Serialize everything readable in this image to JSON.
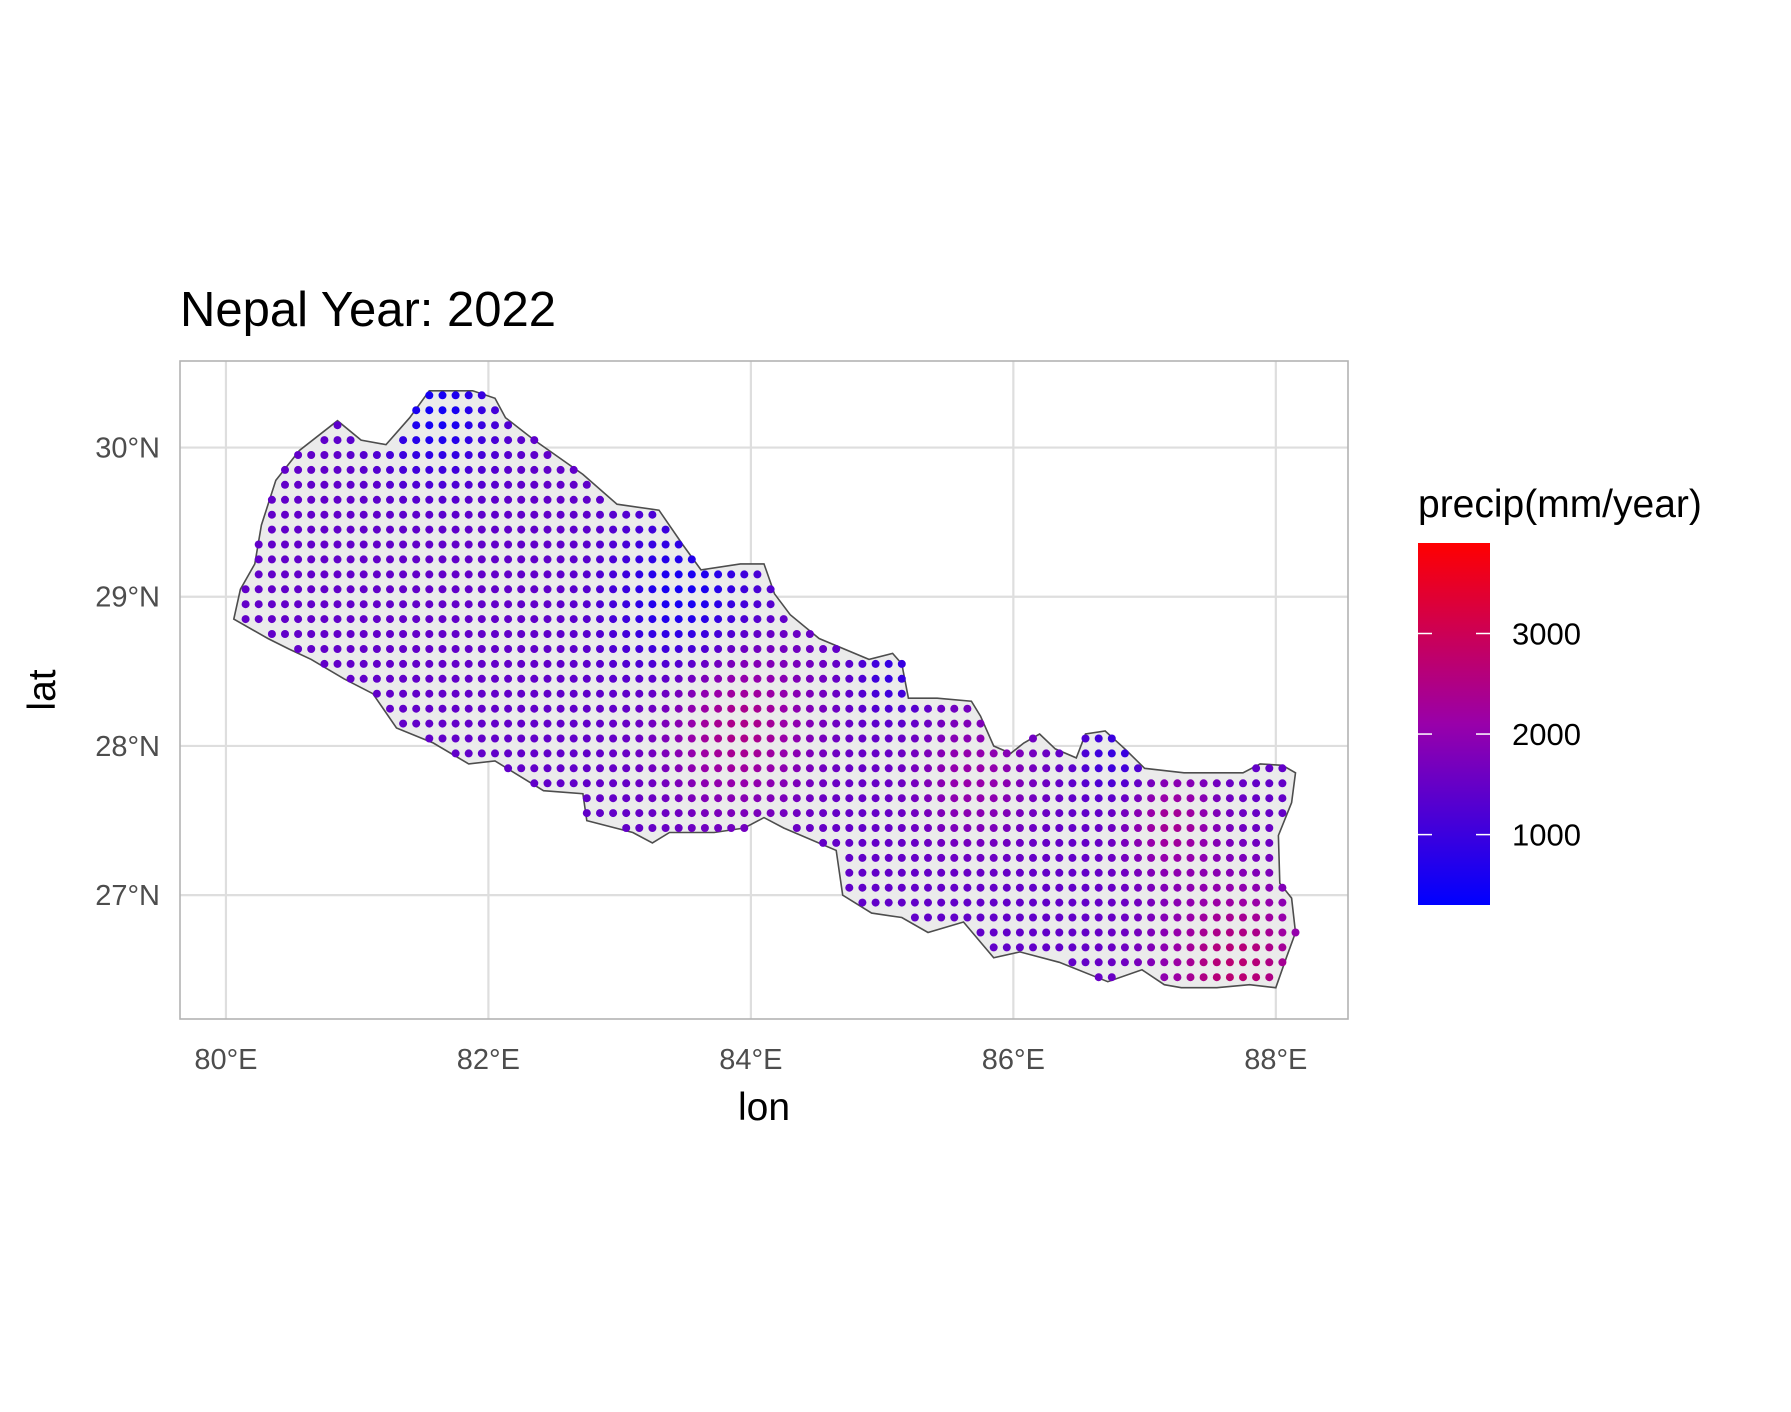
{
  "chart_data": {
    "type": "map",
    "title": "Nepal Year: 2022",
    "xlabel": "lon",
    "ylabel": "lat",
    "xlim": [
      79.65,
      88.55
    ],
    "ylim": [
      26.17,
      30.58
    ],
    "x_ticks": [
      {
        "value": 80,
        "label": "80°E"
      },
      {
        "value": 82,
        "label": "82°E"
      },
      {
        "value": 84,
        "label": "84°E"
      },
      {
        "value": 86,
        "label": "86°E"
      },
      {
        "value": 88,
        "label": "88°E"
      }
    ],
    "y_ticks": [
      {
        "value": 27,
        "label": "27°N"
      },
      {
        "value": 28,
        "label": "28°N"
      },
      {
        "value": 29,
        "label": "29°N"
      },
      {
        "value": 30,
        "label": "30°N"
      }
    ],
    "grid": true,
    "legend": {
      "title": "precip(mm/year)",
      "placement": "right",
      "min": 300,
      "max": 3900,
      "ticks": [
        {
          "value": 1000,
          "label": "1000"
        },
        {
          "value": 2000,
          "label": "2000"
        },
        {
          "value": 3000,
          "label": "3000"
        }
      ],
      "color_low": "#0000ff",
      "color_high": "#ff0000"
    },
    "region_fill": "#ebebeb",
    "region_stroke": "#4d4d4d",
    "boundary": [
      [
        80.06,
        28.85
      ],
      [
        80.11,
        29.05
      ],
      [
        80.22,
        29.22
      ],
      [
        80.27,
        29.48
      ],
      [
        80.38,
        29.78
      ],
      [
        80.56,
        29.98
      ],
      [
        80.85,
        30.18
      ],
      [
        81.03,
        30.05
      ],
      [
        81.22,
        30.02
      ],
      [
        81.4,
        30.2
      ],
      [
        81.55,
        30.38
      ],
      [
        81.88,
        30.38
      ],
      [
        82.05,
        30.33
      ],
      [
        82.13,
        30.2
      ],
      [
        82.35,
        30.05
      ],
      [
        82.72,
        29.82
      ],
      [
        82.98,
        29.62
      ],
      [
        83.3,
        29.58
      ],
      [
        83.48,
        29.35
      ],
      [
        83.62,
        29.18
      ],
      [
        83.92,
        29.22
      ],
      [
        84.1,
        29.22
      ],
      [
        84.18,
        29.02
      ],
      [
        84.3,
        28.88
      ],
      [
        84.52,
        28.72
      ],
      [
        84.9,
        28.58
      ],
      [
        85.08,
        28.62
      ],
      [
        85.15,
        28.55
      ],
      [
        85.2,
        28.32
      ],
      [
        85.42,
        28.32
      ],
      [
        85.68,
        28.3
      ],
      [
        85.75,
        28.2
      ],
      [
        85.85,
        28.0
      ],
      [
        85.98,
        27.95
      ],
      [
        86.08,
        28.02
      ],
      [
        86.2,
        28.08
      ],
      [
        86.32,
        27.98
      ],
      [
        86.48,
        27.92
      ],
      [
        86.55,
        28.08
      ],
      [
        86.7,
        28.1
      ],
      [
        86.85,
        27.98
      ],
      [
        87.0,
        27.85
      ],
      [
        87.3,
        27.82
      ],
      [
        87.62,
        27.82
      ],
      [
        87.75,
        27.82
      ],
      [
        87.88,
        27.88
      ],
      [
        88.05,
        27.87
      ],
      [
        88.15,
        27.82
      ],
      [
        88.12,
        27.62
      ],
      [
        88.02,
        27.4
      ],
      [
        88.03,
        27.08
      ],
      [
        88.12,
        26.98
      ],
      [
        88.15,
        26.75
      ],
      [
        88.08,
        26.58
      ],
      [
        88.0,
        26.38
      ],
      [
        87.8,
        26.4
      ],
      [
        87.55,
        26.38
      ],
      [
        87.28,
        26.38
      ],
      [
        87.15,
        26.4
      ],
      [
        86.98,
        26.5
      ],
      [
        86.72,
        26.42
      ],
      [
        86.35,
        26.55
      ],
      [
        86.05,
        26.62
      ],
      [
        85.85,
        26.58
      ],
      [
        85.62,
        26.82
      ],
      [
        85.35,
        26.75
      ],
      [
        85.15,
        26.85
      ],
      [
        84.92,
        26.88
      ],
      [
        84.7,
        27.0
      ],
      [
        84.65,
        27.3
      ],
      [
        84.25,
        27.45
      ],
      [
        84.1,
        27.52
      ],
      [
        83.95,
        27.45
      ],
      [
        83.72,
        27.42
      ],
      [
        83.38,
        27.42
      ],
      [
        83.25,
        27.35
      ],
      [
        83.1,
        27.42
      ],
      [
        82.75,
        27.5
      ],
      [
        82.72,
        27.68
      ],
      [
        82.42,
        27.7
      ],
      [
        82.05,
        27.9
      ],
      [
        81.85,
        27.88
      ],
      [
        81.58,
        28.02
      ],
      [
        81.3,
        28.12
      ],
      [
        81.12,
        28.35
      ],
      [
        80.9,
        28.45
      ],
      [
        80.65,
        28.58
      ],
      [
        80.48,
        28.65
      ],
      [
        80.32,
        28.72
      ],
      [
        80.06,
        28.85
      ]
    ],
    "field_centers": [
      {
        "lon": 83.9,
        "lat": 28.15,
        "value": 2500,
        "radius": 0.55
      },
      {
        "lon": 87.7,
        "lat": 26.5,
        "value": 2700,
        "radius": 0.6
      },
      {
        "lon": 87.2,
        "lat": 27.5,
        "value": 2300,
        "radius": 0.35
      },
      {
        "lon": 85.7,
        "lat": 27.8,
        "value": 2100,
        "radius": 0.45
      },
      {
        "lon": 83.5,
        "lat": 29.0,
        "value": 500,
        "radius": 0.55
      },
      {
        "lon": 81.6,
        "lat": 30.25,
        "value": 500,
        "radius": 0.45
      },
      {
        "lon": 86.8,
        "lat": 27.95,
        "value": 900,
        "radius": 0.3
      },
      {
        "lon": 85.1,
        "lat": 28.5,
        "value": 900,
        "radius": 0.3
      }
    ]
  }
}
